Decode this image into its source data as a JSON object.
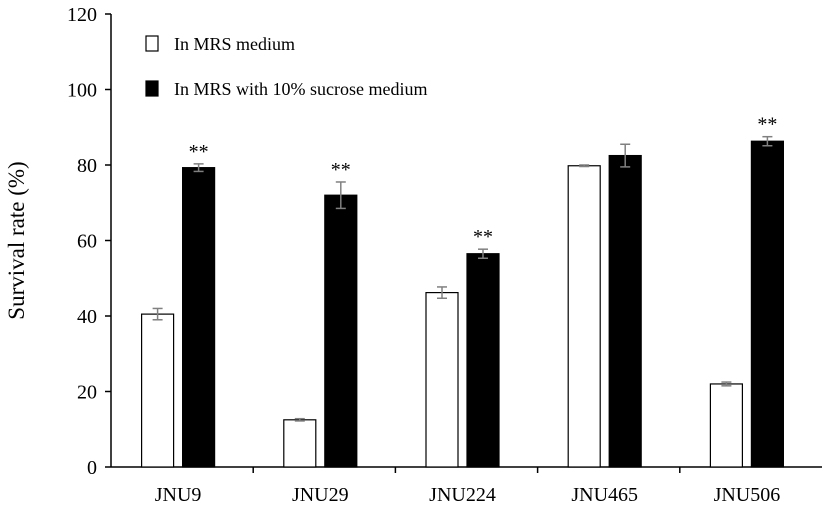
{
  "chart_data": {
    "type": "bar",
    "title": "",
    "xlabel": "",
    "ylabel": "Survival rate (%)",
    "ylim": [
      0,
      120
    ],
    "yticks": [
      0,
      20,
      40,
      60,
      80,
      100,
      120
    ],
    "grid": false,
    "legend_position": "top-left",
    "categories": [
      "JNU9",
      "JNU29",
      "JNU224",
      "JNU465",
      "JNU506"
    ],
    "series": [
      {
        "name": "In MRS  medium",
        "fill": "#ffffff",
        "stroke": "#000000",
        "values": [
          40.5,
          12.5,
          46.2,
          79.8,
          22.0
        ],
        "errors": [
          1.5,
          0.3,
          1.5,
          0.2,
          0.5
        ],
        "significance": [
          "",
          "",
          "",
          "",
          ""
        ]
      },
      {
        "name": "In MRS with 10% sucrose  medium",
        "fill": "#000000",
        "stroke": "#000000",
        "values": [
          79.3,
          72.0,
          56.5,
          82.5,
          86.3
        ],
        "errors": [
          1.0,
          3.5,
          1.2,
          3.0,
          1.2
        ],
        "significance": [
          "**",
          "**",
          "**",
          "",
          "**"
        ]
      }
    ],
    "error_bar_color": "#808080"
  }
}
